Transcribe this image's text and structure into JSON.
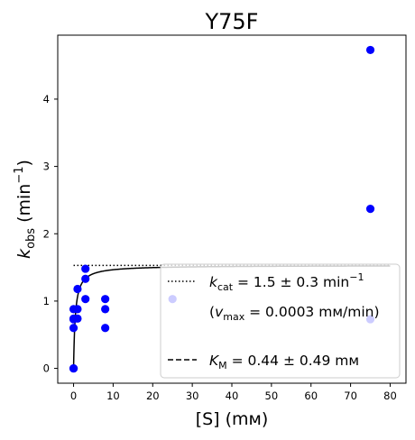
{
  "chart_data": {
    "type": "scatter",
    "title": "Y75F",
    "xlabel": "[S] (mм)",
    "ylabel": "kobs (min−1)",
    "ylabel_parts": {
      "base": "k",
      "sub": "obs",
      "unit_open": " (min",
      "sup": "−1",
      "unit_close": ")"
    },
    "xlim": [
      -4,
      84
    ],
    "ylim": [
      -0.22,
      4.95
    ],
    "x_ticks": [
      0,
      10,
      20,
      30,
      40,
      50,
      60,
      70,
      80
    ],
    "y_ticks": [
      0,
      1,
      2,
      3,
      4
    ],
    "grid": false,
    "legend_position": "lower-right",
    "series": [
      {
        "kind": "points",
        "color": "#0000ff",
        "x": [
          0,
          0,
          0,
          0,
          0,
          0,
          1,
          1,
          1,
          3,
          3,
          3,
          8,
          8,
          8,
          25,
          75,
          75,
          75
        ],
        "y": [
          0.0,
          0.0,
          0.6,
          0.73,
          0.74,
          0.88,
          0.74,
          0.88,
          1.18,
          1.03,
          1.33,
          1.48,
          0.6,
          0.88,
          1.03,
          1.03,
          0.73,
          2.37,
          4.73
        ]
      },
      {
        "kind": "fit",
        "name": "",
        "color": "#000000",
        "style": "solid",
        "kcat": 1.53,
        "KM": 0.44,
        "x_range": [
          0,
          80
        ]
      },
      {
        "kind": "kcat-line",
        "color": "#000000",
        "style": "dotted",
        "y": 1.53,
        "x_range": [
          0,
          80
        ]
      }
    ],
    "legend": {
      "entries": [
        {
          "style": "dotted",
          "pre": "k",
          "sub": "cat",
          "post": " = 1.5 ± 0.3 min",
          "sup": "−1"
        },
        {
          "style": "none",
          "pre": "(v",
          "sub": "max",
          "post": " = 0.0003 mм/min)",
          "sup": ""
        },
        {
          "style": "dashed",
          "pre": "K",
          "sub": "M",
          "post": " = 0.44 ± 0.49 mм",
          "sup": ""
        }
      ]
    }
  }
}
